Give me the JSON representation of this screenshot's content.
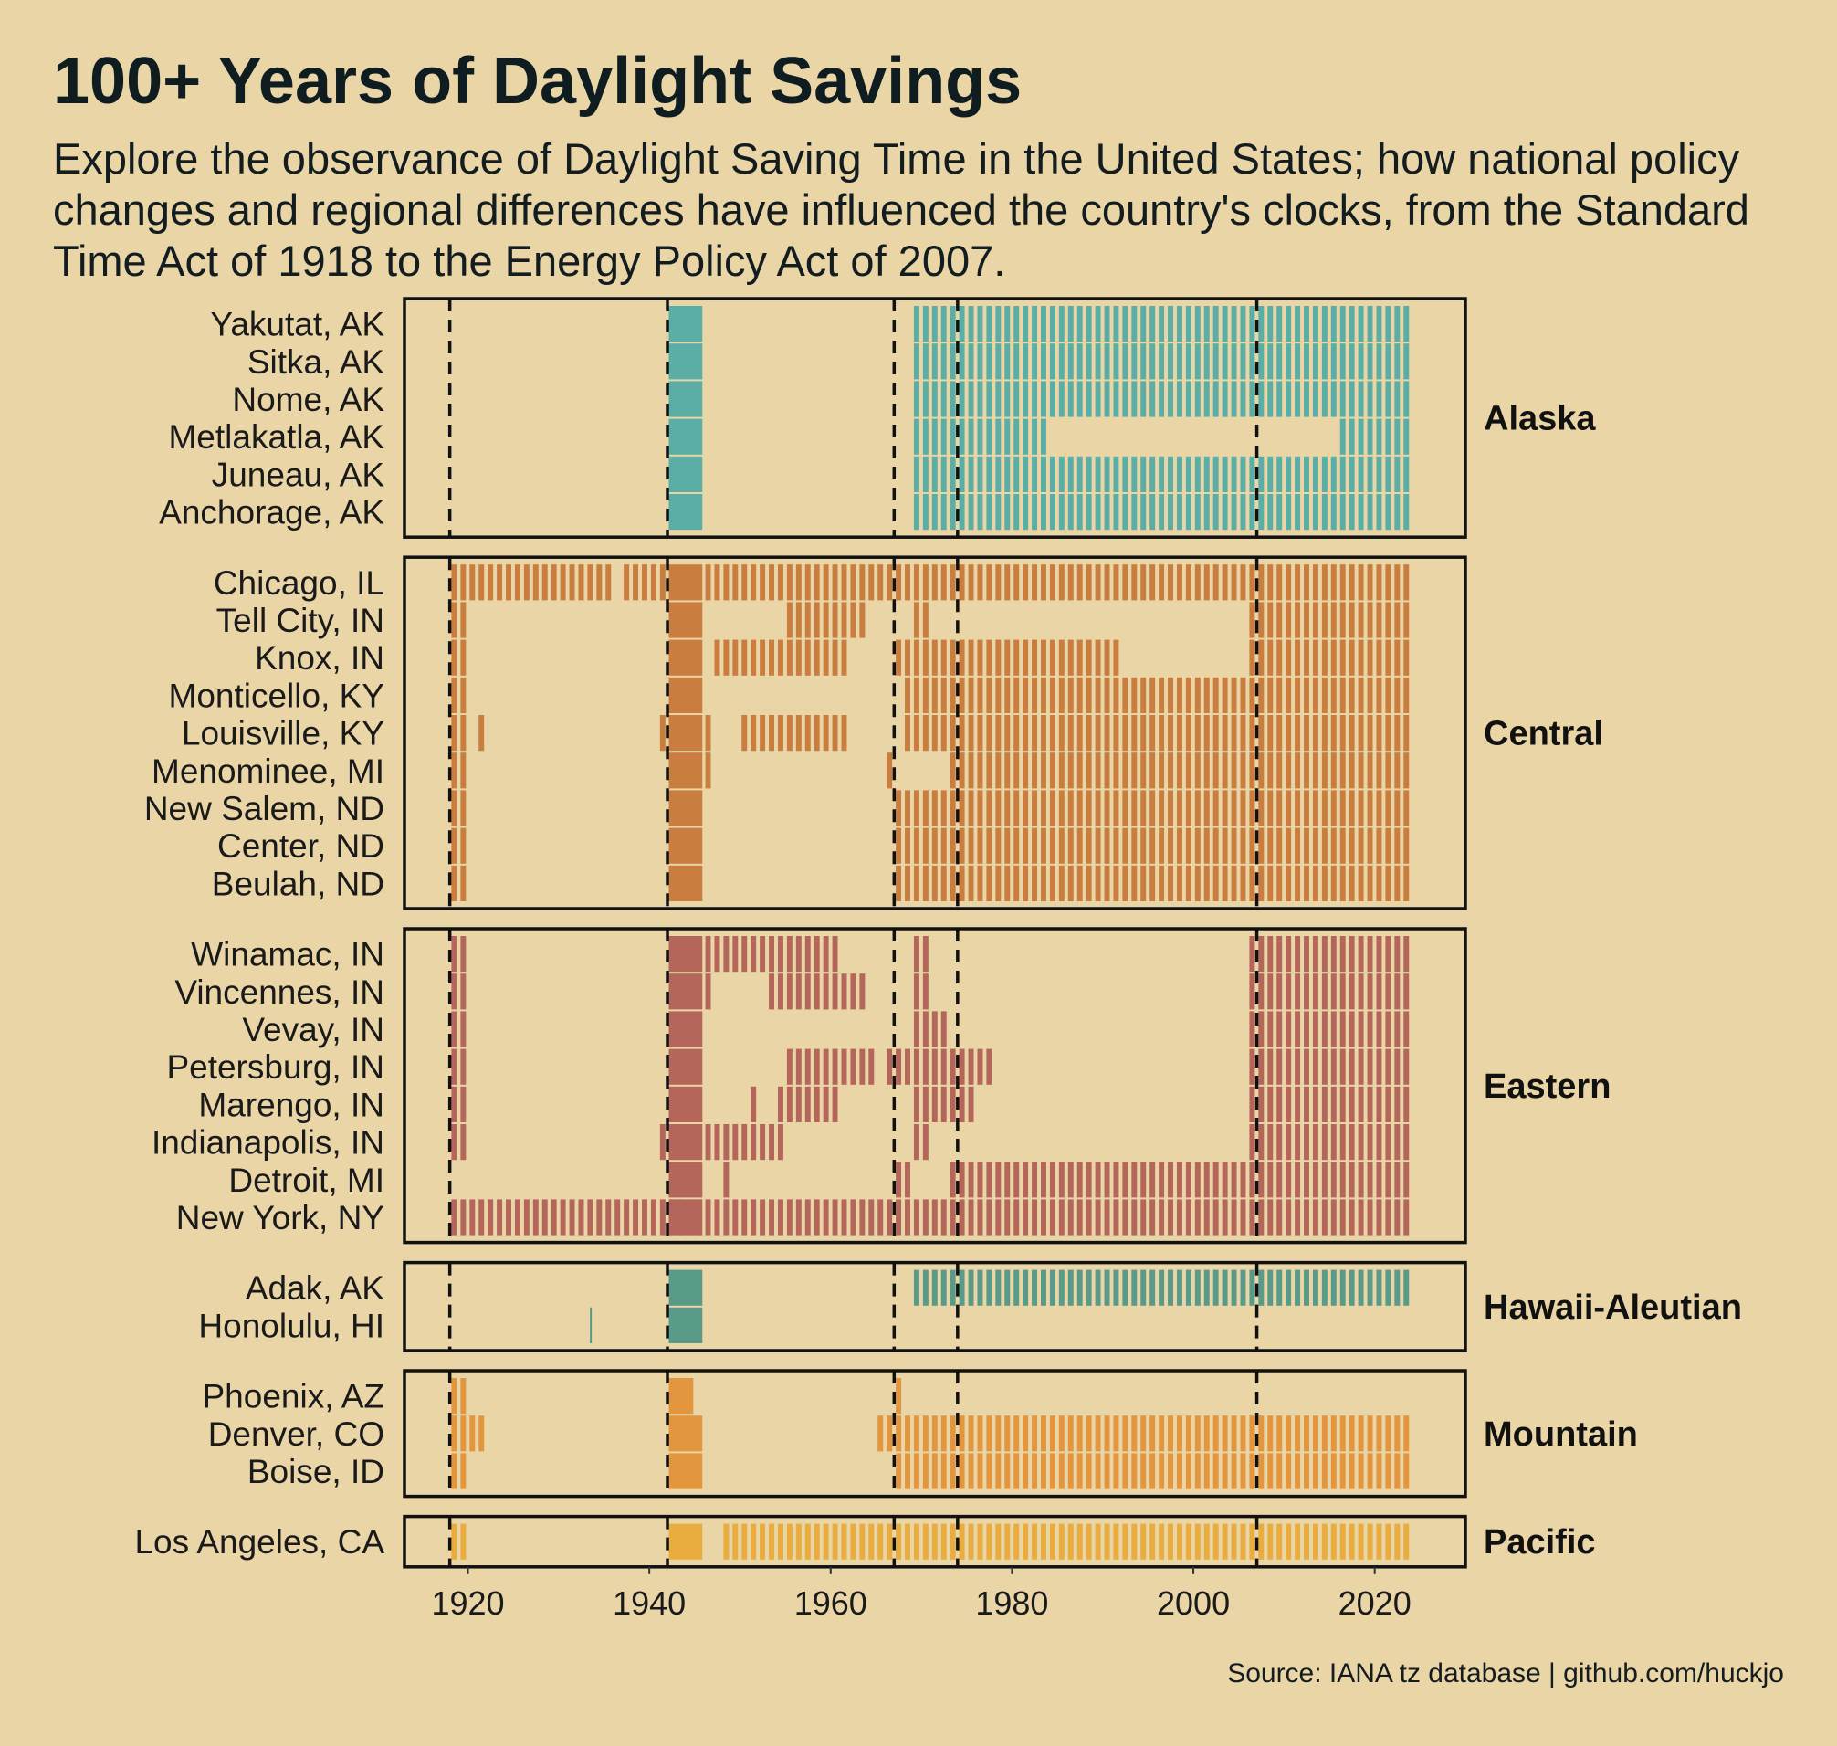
{
  "title": "100+ Years of Daylight Savings",
  "subtitle": "Explore the observance of Daylight Saving Time in the United States; how national policy changes and regional differences have influenced the country's clocks, from the Standard Time Act of 1918 to the Energy Policy Act of 2007.",
  "caption": "Source: IANA tz database | github.com/huckjo",
  "chart_data": {
    "type": "heatmap",
    "x_domain": [
      1913,
      2030
    ],
    "x_ticks": [
      1920,
      1940,
      1960,
      1980,
      2000,
      2020
    ],
    "vlines": [
      1918,
      1942,
      1967,
      1974,
      2007
    ],
    "war_time": [
      1942,
      1945
    ],
    "facets": [
      {
        "name": "Alaska",
        "color": "#5aaea6",
        "rows": [
          {
            "label": "Yakutat, AK",
            "dst": [
              [
                1969,
                2023
              ]
            ]
          },
          {
            "label": "Sitka, AK",
            "dst": [
              [
                1969,
                2023
              ]
            ]
          },
          {
            "label": "Nome, AK",
            "dst": [
              [
                1969,
                2023
              ]
            ]
          },
          {
            "label": "Metlakatla, AK",
            "dst": [
              [
                1969,
                1983
              ],
              [
                2016,
                2023
              ]
            ]
          },
          {
            "label": "Juneau, AK",
            "dst": [
              [
                1969,
                2023
              ]
            ]
          },
          {
            "label": "Anchorage, AK",
            "dst": [
              [
                1969,
                2023
              ]
            ]
          }
        ]
      },
      {
        "name": "Central",
        "color": "#c97d3f",
        "rows": [
          {
            "label": "Chicago, IL",
            "dst": [
              [
                1918,
                1935
              ],
              [
                1937,
                1941
              ],
              [
                1946,
                2023
              ]
            ]
          },
          {
            "label": "Tell City, IN",
            "dst": [
              [
                1918,
                1919
              ],
              [
                1955,
                1963
              ],
              [
                1969,
                1970
              ],
              [
                2006,
                2023
              ]
            ]
          },
          {
            "label": "Knox, IN",
            "dst": [
              [
                1918,
                1919
              ],
              [
                1947,
                1961
              ],
              [
                1967,
                1991
              ],
              [
                2006,
                2023
              ]
            ]
          },
          {
            "label": "Monticello, KY",
            "dst": [
              [
                1918,
                1919
              ],
              [
                1968,
                2023
              ]
            ]
          },
          {
            "label": "Louisville, KY",
            "dst": [
              [
                1918,
                1919
              ],
              [
                1921,
                1921
              ],
              [
                1941,
                1941
              ],
              [
                1946,
                1946
              ],
              [
                1950,
                1961
              ],
              [
                1968,
                2023
              ]
            ]
          },
          {
            "label": "Menominee, MI",
            "dst": [
              [
                1918,
                1919
              ],
              [
                1946,
                1946
              ],
              [
                1966,
                1966
              ],
              [
                1973,
                2023
              ]
            ]
          },
          {
            "label": "New Salem, ND",
            "dst": [
              [
                1918,
                1919
              ],
              [
                1967,
                2023
              ]
            ]
          },
          {
            "label": "Center, ND",
            "dst": [
              [
                1918,
                1919
              ],
              [
                1967,
                2023
              ]
            ]
          },
          {
            "label": "Beulah, ND",
            "dst": [
              [
                1918,
                1919
              ],
              [
                1967,
                2023
              ]
            ]
          }
        ]
      },
      {
        "name": "Eastern",
        "color": "#b5665a",
        "rows": [
          {
            "label": "Winamac, IN",
            "dst": [
              [
                1918,
                1919
              ],
              [
                1946,
                1960
              ],
              [
                1969,
                1970
              ],
              [
                2006,
                2023
              ]
            ]
          },
          {
            "label": "Vincennes, IN",
            "dst": [
              [
                1918,
                1919
              ],
              [
                1946,
                1946
              ],
              [
                1953,
                1963
              ],
              [
                1969,
                1970
              ],
              [
                2006,
                2023
              ]
            ]
          },
          {
            "label": "Vevay, IN",
            "dst": [
              [
                1918,
                1919
              ],
              [
                1969,
                1972
              ],
              [
                2006,
                2023
              ]
            ]
          },
          {
            "label": "Petersburg, IN",
            "dst": [
              [
                1918,
                1919
              ],
              [
                1955,
                1964
              ],
              [
                1966,
                1977
              ],
              [
                2006,
                2023
              ]
            ]
          },
          {
            "label": "Marengo, IN",
            "dst": [
              [
                1918,
                1919
              ],
              [
                1951,
                1951
              ],
              [
                1954,
                1960
              ],
              [
                1969,
                1975
              ],
              [
                2006,
                2023
              ]
            ]
          },
          {
            "label": "Indianapolis, IN",
            "dst": [
              [
                1918,
                1919
              ],
              [
                1941,
                1941
              ],
              [
                1946,
                1954
              ],
              [
                1969,
                1970
              ],
              [
                2006,
                2023
              ]
            ]
          },
          {
            "label": "Detroit, MI",
            "dst": [
              [
                1948,
                1948
              ],
              [
                1967,
                1968
              ],
              [
                1973,
                2023
              ]
            ]
          },
          {
            "label": "New York, NY",
            "dst": [
              [
                1918,
                2023
              ]
            ]
          }
        ]
      },
      {
        "name": "Hawaii-Aleutian",
        "color": "#5a9a88",
        "rows": [
          {
            "label": "Adak, AK",
            "dst": [
              [
                1969,
                2023
              ]
            ]
          },
          {
            "label": "Honolulu, HI",
            "dst": [],
            "thin": [
              1933
            ]
          }
        ]
      },
      {
        "name": "Mountain",
        "color": "#e3963e",
        "rows": [
          {
            "label": "Phoenix, AZ",
            "dst": [
              [
                1918,
                1919
              ],
              [
                1944,
                1944
              ],
              [
                1967,
                1967
              ]
            ],
            "war_end": 1944
          },
          {
            "label": "Denver, CO",
            "dst": [
              [
                1918,
                1921
              ],
              [
                1965,
                1966
              ],
              [
                1967,
                2023
              ]
            ]
          },
          {
            "label": "Boise, ID",
            "dst": [
              [
                1918,
                1919
              ],
              [
                1967,
                2023
              ]
            ]
          }
        ]
      },
      {
        "name": "Pacific",
        "color": "#e8ac3f",
        "rows": [
          {
            "label": "Los Angeles, CA",
            "dst": [
              [
                1918,
                1919
              ],
              [
                1948,
                1949
              ],
              [
                1950,
                2023
              ]
            ]
          }
        ]
      }
    ]
  }
}
